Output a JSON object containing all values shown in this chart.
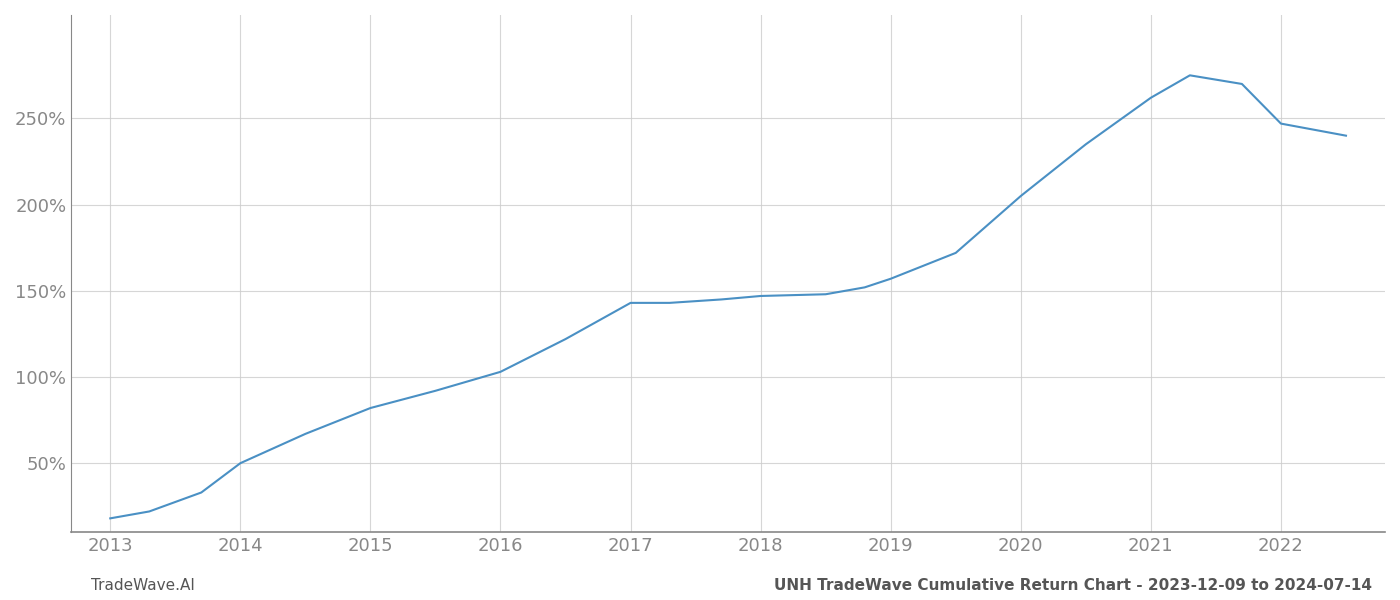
{
  "x_values": [
    2013.0,
    2013.3,
    2013.7,
    2014.0,
    2014.5,
    2015.0,
    2015.5,
    2016.0,
    2016.5,
    2017.0,
    2017.3,
    2017.7,
    2018.0,
    2018.5,
    2018.8,
    2019.0,
    2019.5,
    2020.0,
    2020.5,
    2021.0,
    2021.3,
    2021.7,
    2022.0,
    2022.5
  ],
  "y_values": [
    18,
    22,
    33,
    50,
    67,
    82,
    92,
    103,
    122,
    143,
    143,
    145,
    147,
    148,
    152,
    157,
    172,
    205,
    235,
    262,
    275,
    270,
    247,
    240
  ],
  "line_color": "#4a90c4",
  "line_width": 1.5,
  "xlim": [
    2012.7,
    2022.8
  ],
  "ylim": [
    10,
    310
  ],
  "yticks": [
    50,
    100,
    150,
    200,
    250
  ],
  "ytick_labels": [
    "50%",
    "100%",
    "150%",
    "200%",
    "250%"
  ],
  "xticks": [
    2013,
    2014,
    2015,
    2016,
    2017,
    2018,
    2019,
    2020,
    2021,
    2022
  ],
  "xtick_labels": [
    "2013",
    "2014",
    "2015",
    "2016",
    "2017",
    "2018",
    "2019",
    "2020",
    "2021",
    "2022"
  ],
  "grid_color": "#cccccc",
  "grid_alpha": 0.8,
  "background_color": "#ffffff",
  "tick_color": "#888888",
  "tick_fontsize": 13,
  "footer_left": "TradeWave.AI",
  "footer_right": "UNH TradeWave Cumulative Return Chart - 2023-12-09 to 2024-07-14",
  "footer_fontsize": 11,
  "footer_color": "#555555"
}
